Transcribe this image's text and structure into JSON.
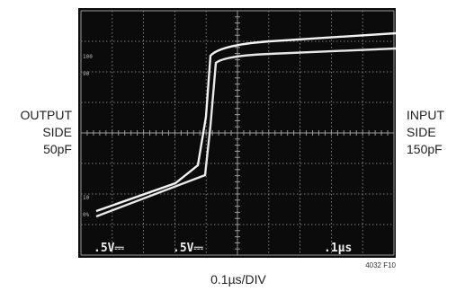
{
  "figure": {
    "left_label": [
      "OUTPUT",
      "SIDE",
      "50pF"
    ],
    "right_label": [
      "INPUT",
      "SIDE",
      "150pF"
    ],
    "screen_labels": [
      ".5V⎓",
      ".5V⎓",
      ".1µs"
    ],
    "scale_marks": [
      "100",
      "90",
      "10",
      "0%"
    ],
    "x_caption": "0.1µs/DIV",
    "figure_id": "4032 F10"
  }
}
